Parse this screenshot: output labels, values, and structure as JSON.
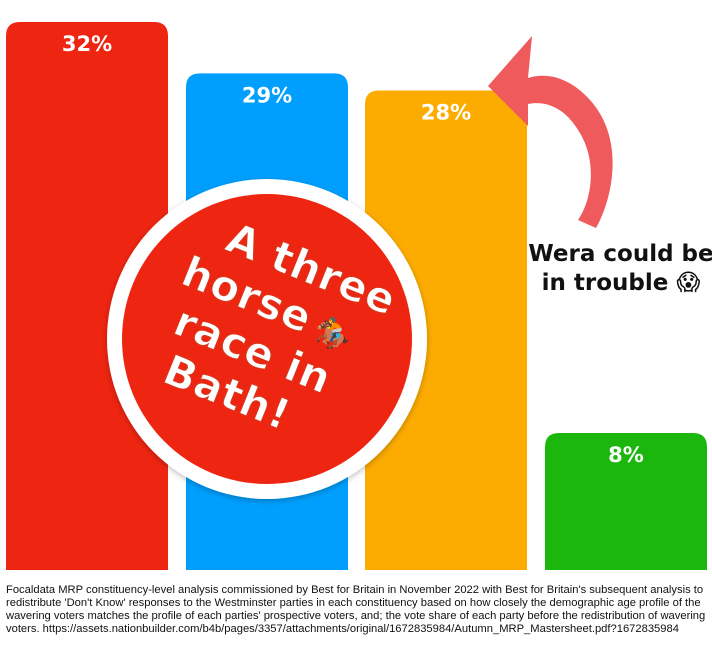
{
  "chart_data": {
    "type": "bar",
    "categories": [
      "",
      "",
      "",
      ""
    ],
    "values": [
      32,
      29,
      28,
      8
    ],
    "value_labels": [
      "32%",
      "29%",
      "28%",
      "8%"
    ],
    "colors": [
      "#ee2511",
      "#009ffd",
      "#fcab00",
      "#1cb70d"
    ],
    "title": "",
    "xlabel": "",
    "ylabel": "",
    "ylim": [
      0,
      32
    ],
    "grid": false,
    "legend": "none"
  },
  "badge": {
    "lines": [
      "A three",
      "horse",
      "race in",
      "Bath!"
    ],
    "emoji": "🏇",
    "color": "#ee2511"
  },
  "callout": {
    "lines": [
      "Wera could be",
      "in trouble 😱"
    ],
    "arrow_color": "#ef5a5c"
  },
  "footnote": "Focaldata MRP constituency-level analysis commissioned by Best for Britain in November 2022 with Best for Britain's subsequent analysis to redistribute 'Don't Know' responses to the Westminster parties in each constituency based on how closely the demographic age profile of the wavering voters matches the profile of each parties' prospective voters, and; the vote share of each party before the redistribution of wavering voters. https://assets.nationbuilder.com/b4b/pages/3357/attachments/original/1672835984/Autumn_MRP_Mastersheet.pdf?1672835984"
}
